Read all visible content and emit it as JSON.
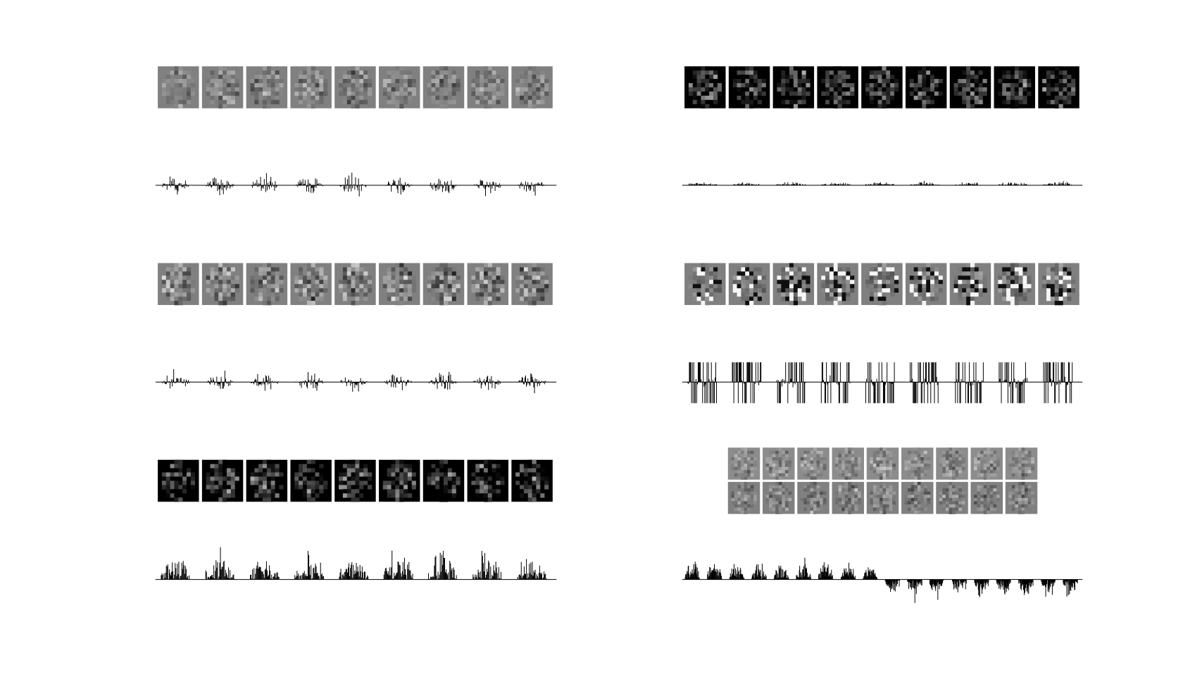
{
  "figure": {
    "background": "#ffffff",
    "panels": [
      {
        "id": "L1",
        "column": "left",
        "row": 1,
        "kind": "image-strip",
        "tiles": 9,
        "tone": "mid-gray"
      },
      {
        "id": "L2",
        "column": "left",
        "row": 1,
        "kind": "bipolar-bars",
        "groups": 9
      },
      {
        "id": "L3",
        "column": "left",
        "row": 2,
        "kind": "image-strip",
        "tiles": 9,
        "tone": "mid-gray-high-contrast"
      },
      {
        "id": "L4",
        "column": "left",
        "row": 2,
        "kind": "bipolar-bars",
        "groups": 9
      },
      {
        "id": "L5",
        "column": "left",
        "row": 3,
        "kind": "image-strip",
        "tiles": 9,
        "tone": "dark"
      },
      {
        "id": "L6",
        "column": "left",
        "row": 3,
        "kind": "positive-bars",
        "groups": 9
      },
      {
        "id": "R1",
        "column": "right",
        "row": 1,
        "kind": "image-strip",
        "tiles": 9,
        "tone": "dark"
      },
      {
        "id": "R2",
        "column": "right",
        "row": 1,
        "kind": "small-positive-bars",
        "groups": 9
      },
      {
        "id": "R3",
        "column": "right",
        "row": 2,
        "kind": "image-strip",
        "tiles": 9,
        "tone": "binary-contrast"
      },
      {
        "id": "R4",
        "column": "right",
        "row": 2,
        "kind": "binary-bars",
        "groups": 9
      },
      {
        "id": "R5",
        "column": "right",
        "row": 3,
        "kind": "image-grid",
        "rows": 2,
        "tiles": 9,
        "tone": "light-over-dark"
      },
      {
        "id": "R6",
        "column": "right",
        "row": 3,
        "kind": "split-bars",
        "groups": 18
      }
    ]
  }
}
